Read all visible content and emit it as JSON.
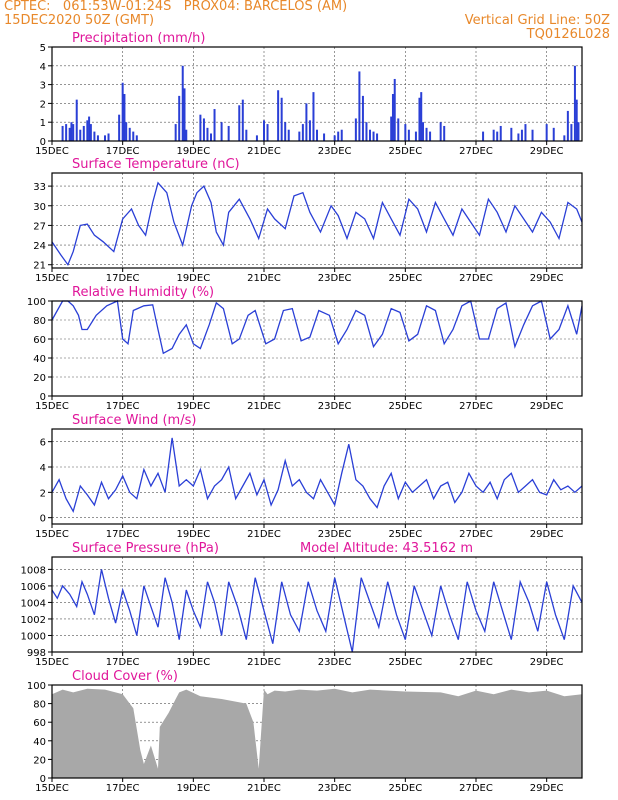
{
  "header": {
    "line1_left": "CPTEC:   061:53W-01:24S   PROX04: BARCELOS (AM)",
    "line2_left": "15DEC2020 50Z (GMT)",
    "line2_right": "Vertical Grid Line: 50Z",
    "line3_right": "TQ0126L028"
  },
  "colors": {
    "header": "#e8882a",
    "title": "#e0169a",
    "line": "#2a3fd6",
    "bar": "#2a3fd6",
    "cloud": "#a8a8a8",
    "grid": "#555555"
  },
  "x_axis": {
    "ticks": [
      {
        "day": 0,
        "label": "15DEC"
      },
      {
        "day": 2,
        "label": "17DEC"
      },
      {
        "day": 4,
        "label": "19DEC"
      },
      {
        "day": 6,
        "label": "21DEC"
      },
      {
        "day": 8,
        "label": "23DEC"
      },
      {
        "day": 10,
        "label": "25DEC"
      },
      {
        "day": 12,
        "label": "27DEC"
      },
      {
        "day": 14,
        "label": "29DEC"
      }
    ],
    "range_days": [
      0,
      15
    ]
  },
  "chart_data": [
    {
      "type": "bar",
      "title": "Precipitation (mm/h)",
      "ylim": [
        0,
        5
      ],
      "yticks": [
        0,
        1,
        2,
        3,
        4,
        5
      ],
      "x": [
        0.3,
        0.4,
        0.5,
        0.55,
        0.6,
        0.7,
        0.8,
        0.9,
        1.0,
        1.05,
        1.1,
        1.2,
        1.3,
        1.5,
        1.6,
        1.9,
        2.0,
        2.05,
        2.1,
        2.2,
        2.3,
        2.4,
        3.5,
        3.6,
        3.7,
        3.75,
        3.8,
        4.2,
        4.3,
        4.4,
        4.5,
        4.6,
        4.8,
        5.0,
        5.3,
        5.4,
        5.5,
        5.8,
        6.0,
        6.1,
        6.4,
        6.5,
        6.6,
        6.7,
        7.0,
        7.1,
        7.2,
        7.3,
        7.4,
        7.5,
        7.7,
        8.0,
        8.1,
        8.2,
        8.6,
        8.7,
        8.8,
        8.9,
        9.0,
        9.1,
        9.2,
        9.6,
        9.65,
        9.7,
        9.8,
        10.0,
        10.1,
        10.3,
        10.4,
        10.45,
        10.5,
        10.6,
        10.7,
        11.0,
        11.1,
        12.2,
        12.5,
        12.6,
        12.7,
        13.0,
        13.2,
        13.3,
        13.4,
        13.6,
        14.0,
        14.2,
        14.5,
        14.6,
        14.7,
        14.8,
        14.85,
        14.9
      ],
      "values": [
        0.8,
        0.9,
        0.7,
        1.0,
        0.9,
        2.2,
        0.6,
        0.8,
        1.1,
        1.3,
        0.9,
        0.5,
        0.3,
        0.3,
        0.4,
        1.4,
        3.1,
        2.5,
        1.0,
        0.7,
        0.5,
        0.3,
        0.9,
        2.4,
        4.0,
        2.8,
        0.6,
        1.4,
        1.2,
        0.7,
        0.4,
        1.7,
        1.0,
        0.8,
        1.9,
        2.2,
        0.6,
        0.3,
        1.1,
        0.9,
        2.7,
        2.3,
        1.0,
        0.6,
        0.5,
        0.9,
        2.0,
        1.1,
        2.6,
        0.6,
        0.4,
        0.3,
        0.5,
        0.6,
        1.2,
        3.7,
        2.4,
        1.0,
        0.6,
        0.5,
        0.4,
        1.3,
        2.5,
        3.3,
        1.2,
        0.9,
        0.6,
        0.5,
        2.3,
        2.6,
        1.0,
        0.7,
        0.5,
        1.0,
        0.8,
        0.5,
        0.6,
        0.5,
        0.8,
        0.7,
        0.4,
        0.6,
        0.9,
        0.6,
        0.9,
        0.7,
        0.3,
        1.6,
        0.9,
        4.0,
        2.2,
        1.0
      ]
    },
    {
      "type": "line",
      "title": "Surface Temperature (nC)",
      "ylim": [
        20.5,
        35
      ],
      "yticks": [
        21,
        24,
        27,
        30,
        33
      ],
      "x": [
        0,
        0.25,
        0.45,
        0.6,
        0.8,
        1.0,
        1.2,
        1.45,
        1.75,
        2.0,
        2.25,
        2.45,
        2.65,
        2.85,
        3.0,
        3.25,
        3.45,
        3.7,
        3.95,
        4.1,
        4.3,
        4.5,
        4.65,
        4.85,
        5.0,
        5.3,
        5.6,
        5.85,
        6.1,
        6.3,
        6.6,
        6.85,
        7.1,
        7.3,
        7.6,
        7.9,
        8.1,
        8.35,
        8.6,
        8.85,
        9.1,
        9.35,
        9.6,
        9.85,
        10.1,
        10.35,
        10.6,
        10.85,
        11.1,
        11.35,
        11.6,
        11.85,
        12.1,
        12.35,
        12.6,
        12.85,
        13.1,
        13.35,
        13.6,
        13.85,
        14.1,
        14.35,
        14.6,
        14.85,
        15.0
      ],
      "values": [
        24.5,
        22.5,
        21.0,
        23.0,
        27.0,
        27.2,
        25.5,
        24.5,
        23.0,
        28.0,
        29.5,
        27.0,
        25.5,
        30.5,
        33.5,
        32.0,
        27.5,
        24.0,
        30.0,
        32.0,
        33.0,
        30.5,
        26.0,
        24.0,
        29.0,
        31.0,
        28.0,
        25.0,
        29.5,
        28.0,
        26.5,
        31.5,
        32.0,
        29.0,
        26.0,
        30.0,
        28.5,
        25.0,
        29.0,
        28.0,
        25.0,
        30.5,
        28.0,
        25.5,
        31.0,
        29.5,
        26.0,
        30.5,
        28.0,
        25.5,
        29.5,
        27.5,
        25.5,
        31.0,
        29.0,
        26.0,
        30.0,
        28.0,
        26.0,
        29.0,
        27.5,
        25.0,
        30.5,
        29.5,
        27.5
      ]
    },
    {
      "type": "line",
      "title": "Relative Humidity (%)",
      "ylim": [
        0,
        100
      ],
      "yticks": [
        0,
        20,
        40,
        60,
        80,
        100
      ],
      "x": [
        0,
        0.15,
        0.3,
        0.45,
        0.6,
        0.75,
        0.85,
        1.0,
        1.25,
        1.55,
        1.85,
        2.0,
        2.15,
        2.3,
        2.6,
        2.85,
        3.0,
        3.15,
        3.4,
        3.6,
        3.8,
        4.0,
        4.2,
        4.45,
        4.65,
        4.85,
        5.1,
        5.3,
        5.55,
        5.75,
        6.05,
        6.3,
        6.55,
        6.8,
        7.05,
        7.3,
        7.55,
        7.85,
        8.1,
        8.35,
        8.6,
        8.85,
        9.1,
        9.35,
        9.6,
        9.85,
        10.1,
        10.35,
        10.6,
        10.85,
        11.1,
        11.35,
        11.6,
        11.85,
        12.1,
        12.35,
        12.6,
        12.85,
        13.1,
        13.35,
        13.6,
        13.85,
        14.1,
        14.35,
        14.6,
        14.85,
        15.0
      ],
      "values": [
        80,
        90,
        100,
        100,
        95,
        85,
        70,
        70,
        85,
        95,
        100,
        60,
        55,
        90,
        95,
        96,
        70,
        45,
        50,
        65,
        75,
        55,
        50,
        75,
        98,
        92,
        55,
        60,
        85,
        90,
        55,
        60,
        90,
        92,
        58,
        62,
        90,
        85,
        55,
        70,
        90,
        85,
        52,
        65,
        92,
        88,
        58,
        65,
        95,
        90,
        55,
        70,
        95,
        100,
        60,
        60,
        92,
        98,
        52,
        75,
        95,
        100,
        60,
        70,
        95,
        65,
        95
      ]
    },
    {
      "type": "line",
      "title": "Surface Wind (m/s)",
      "ylim": [
        -0.5,
        7
      ],
      "yticks": [
        0,
        2,
        4,
        6
      ],
      "x": [
        0,
        0.2,
        0.4,
        0.6,
        0.8,
        1.0,
        1.2,
        1.4,
        1.6,
        1.8,
        2.0,
        2.2,
        2.4,
        2.6,
        2.8,
        3.0,
        3.2,
        3.4,
        3.6,
        3.8,
        4.0,
        4.2,
        4.4,
        4.6,
        4.8,
        5.0,
        5.2,
        5.4,
        5.6,
        5.8,
        6.0,
        6.2,
        6.4,
        6.6,
        6.8,
        7.0,
        7.2,
        7.4,
        7.6,
        7.8,
        8.0,
        8.2,
        8.4,
        8.6,
        8.8,
        9.0,
        9.2,
        9.4,
        9.6,
        9.8,
        10.0,
        10.2,
        10.4,
        10.6,
        10.8,
        11.0,
        11.2,
        11.4,
        11.6,
        11.8,
        12.0,
        12.2,
        12.4,
        12.6,
        12.8,
        13.0,
        13.2,
        13.4,
        13.6,
        13.8,
        14.0,
        14.2,
        14.4,
        14.6,
        14.8,
        15.0
      ],
      "values": [
        2.0,
        3.0,
        1.5,
        0.5,
        2.5,
        1.8,
        1.0,
        2.8,
        1.5,
        2.2,
        3.3,
        2.0,
        1.5,
        3.8,
        2.5,
        3.5,
        2.0,
        6.3,
        2.5,
        3.0,
        2.5,
        3.8,
        1.5,
        2.5,
        3.0,
        4.0,
        1.5,
        2.5,
        3.5,
        1.8,
        3.0,
        1.0,
        2.2,
        4.5,
        2.5,
        3.0,
        2.0,
        1.5,
        3.0,
        2.0,
        1.0,
        3.5,
        5.8,
        3.0,
        2.5,
        1.5,
        0.8,
        2.5,
        3.5,
        1.5,
        2.8,
        2.0,
        2.5,
        3.0,
        1.5,
        2.5,
        2.8,
        1.2,
        2.0,
        3.5,
        2.5,
        2.0,
        2.8,
        1.5,
        3.0,
        3.5,
        2.0,
        2.5,
        3.0,
        2.0,
        1.8,
        3.0,
        2.2,
        2.5,
        2.0,
        2.5
      ]
    },
    {
      "type": "line",
      "title": "Surface Pressure (hPa)",
      "subtitle": "Model Altitude: 43.5162 m",
      "ylim": [
        998,
        1009.5
      ],
      "yticks": [
        998,
        1000,
        1002,
        1004,
        1006,
        1008
      ],
      "x": [
        0,
        0.15,
        0.3,
        0.5,
        0.7,
        0.85,
        1.0,
        1.2,
        1.4,
        1.6,
        1.8,
        2.0,
        2.2,
        2.4,
        2.6,
        2.8,
        3.0,
        3.2,
        3.4,
        3.6,
        3.8,
        4.0,
        4.2,
        4.4,
        4.6,
        4.8,
        5.0,
        5.25,
        5.5,
        5.75,
        6.0,
        6.25,
        6.5,
        6.75,
        7.0,
        7.25,
        7.5,
        7.75,
        8.0,
        8.25,
        8.5,
        8.75,
        9.0,
        9.25,
        9.5,
        9.75,
        10.0,
        10.25,
        10.5,
        10.75,
        11.0,
        11.25,
        11.5,
        11.75,
        12.0,
        12.25,
        12.5,
        12.75,
        13.0,
        13.25,
        13.5,
        13.75,
        14.0,
        14.25,
        14.5,
        14.75,
        15.0
      ],
      "values": [
        1005.5,
        1004.5,
        1006.0,
        1005.0,
        1003.5,
        1006.5,
        1005.0,
        1002.5,
        1008.0,
        1004.5,
        1001.5,
        1005.5,
        1003.0,
        1000.0,
        1006.0,
        1003.5,
        1001.0,
        1007.0,
        1004.0,
        999.5,
        1005.5,
        1003.0,
        1001.0,
        1006.5,
        1004.0,
        1000.0,
        1006.5,
        1003.5,
        999.5,
        1007.0,
        1003.0,
        999.0,
        1006.5,
        1002.5,
        1000.5,
        1006.5,
        1003.0,
        1000.5,
        1007.0,
        1002.5,
        998.0,
        1007.0,
        1004.0,
        1001.0,
        1006.5,
        1002.5,
        999.5,
        1006.0,
        1003.0,
        1000.0,
        1006.0,
        1002.5,
        999.5,
        1006.5,
        1003.0,
        1000.5,
        1006.5,
        1003.0,
        999.5,
        1006.5,
        1004.0,
        1000.5,
        1006.5,
        1002.5,
        999.5,
        1006.0,
        1004.0
      ]
    },
    {
      "type": "area",
      "title": "Cloud Cover (%)",
      "ylim": [
        0,
        100
      ],
      "yticks": [
        0,
        20,
        40,
        60,
        80,
        100
      ],
      "x": [
        0,
        0.3,
        0.6,
        1.0,
        1.5,
        2.0,
        2.3,
        2.5,
        2.6,
        2.8,
        3.0,
        3.05,
        3.3,
        3.5,
        3.6,
        3.8,
        4.2,
        4.8,
        5.5,
        5.7,
        5.85,
        6.0,
        6.1,
        6.3,
        6.6,
        7.0,
        7.5,
        8.0,
        8.5,
        9.0,
        10.0,
        11.0,
        11.5,
        12.0,
        12.5,
        13.0,
        13.5,
        14.0,
        14.5,
        15.0
      ],
      "values": [
        90,
        95,
        92,
        96,
        95,
        90,
        75,
        30,
        15,
        35,
        10,
        55,
        70,
        85,
        92,
        95,
        88,
        85,
        80,
        60,
        10,
        95,
        90,
        94,
        93,
        95,
        94,
        96,
        92,
        95,
        93,
        92,
        88,
        94,
        90,
        95,
        92,
        94,
        88,
        90
      ]
    }
  ]
}
